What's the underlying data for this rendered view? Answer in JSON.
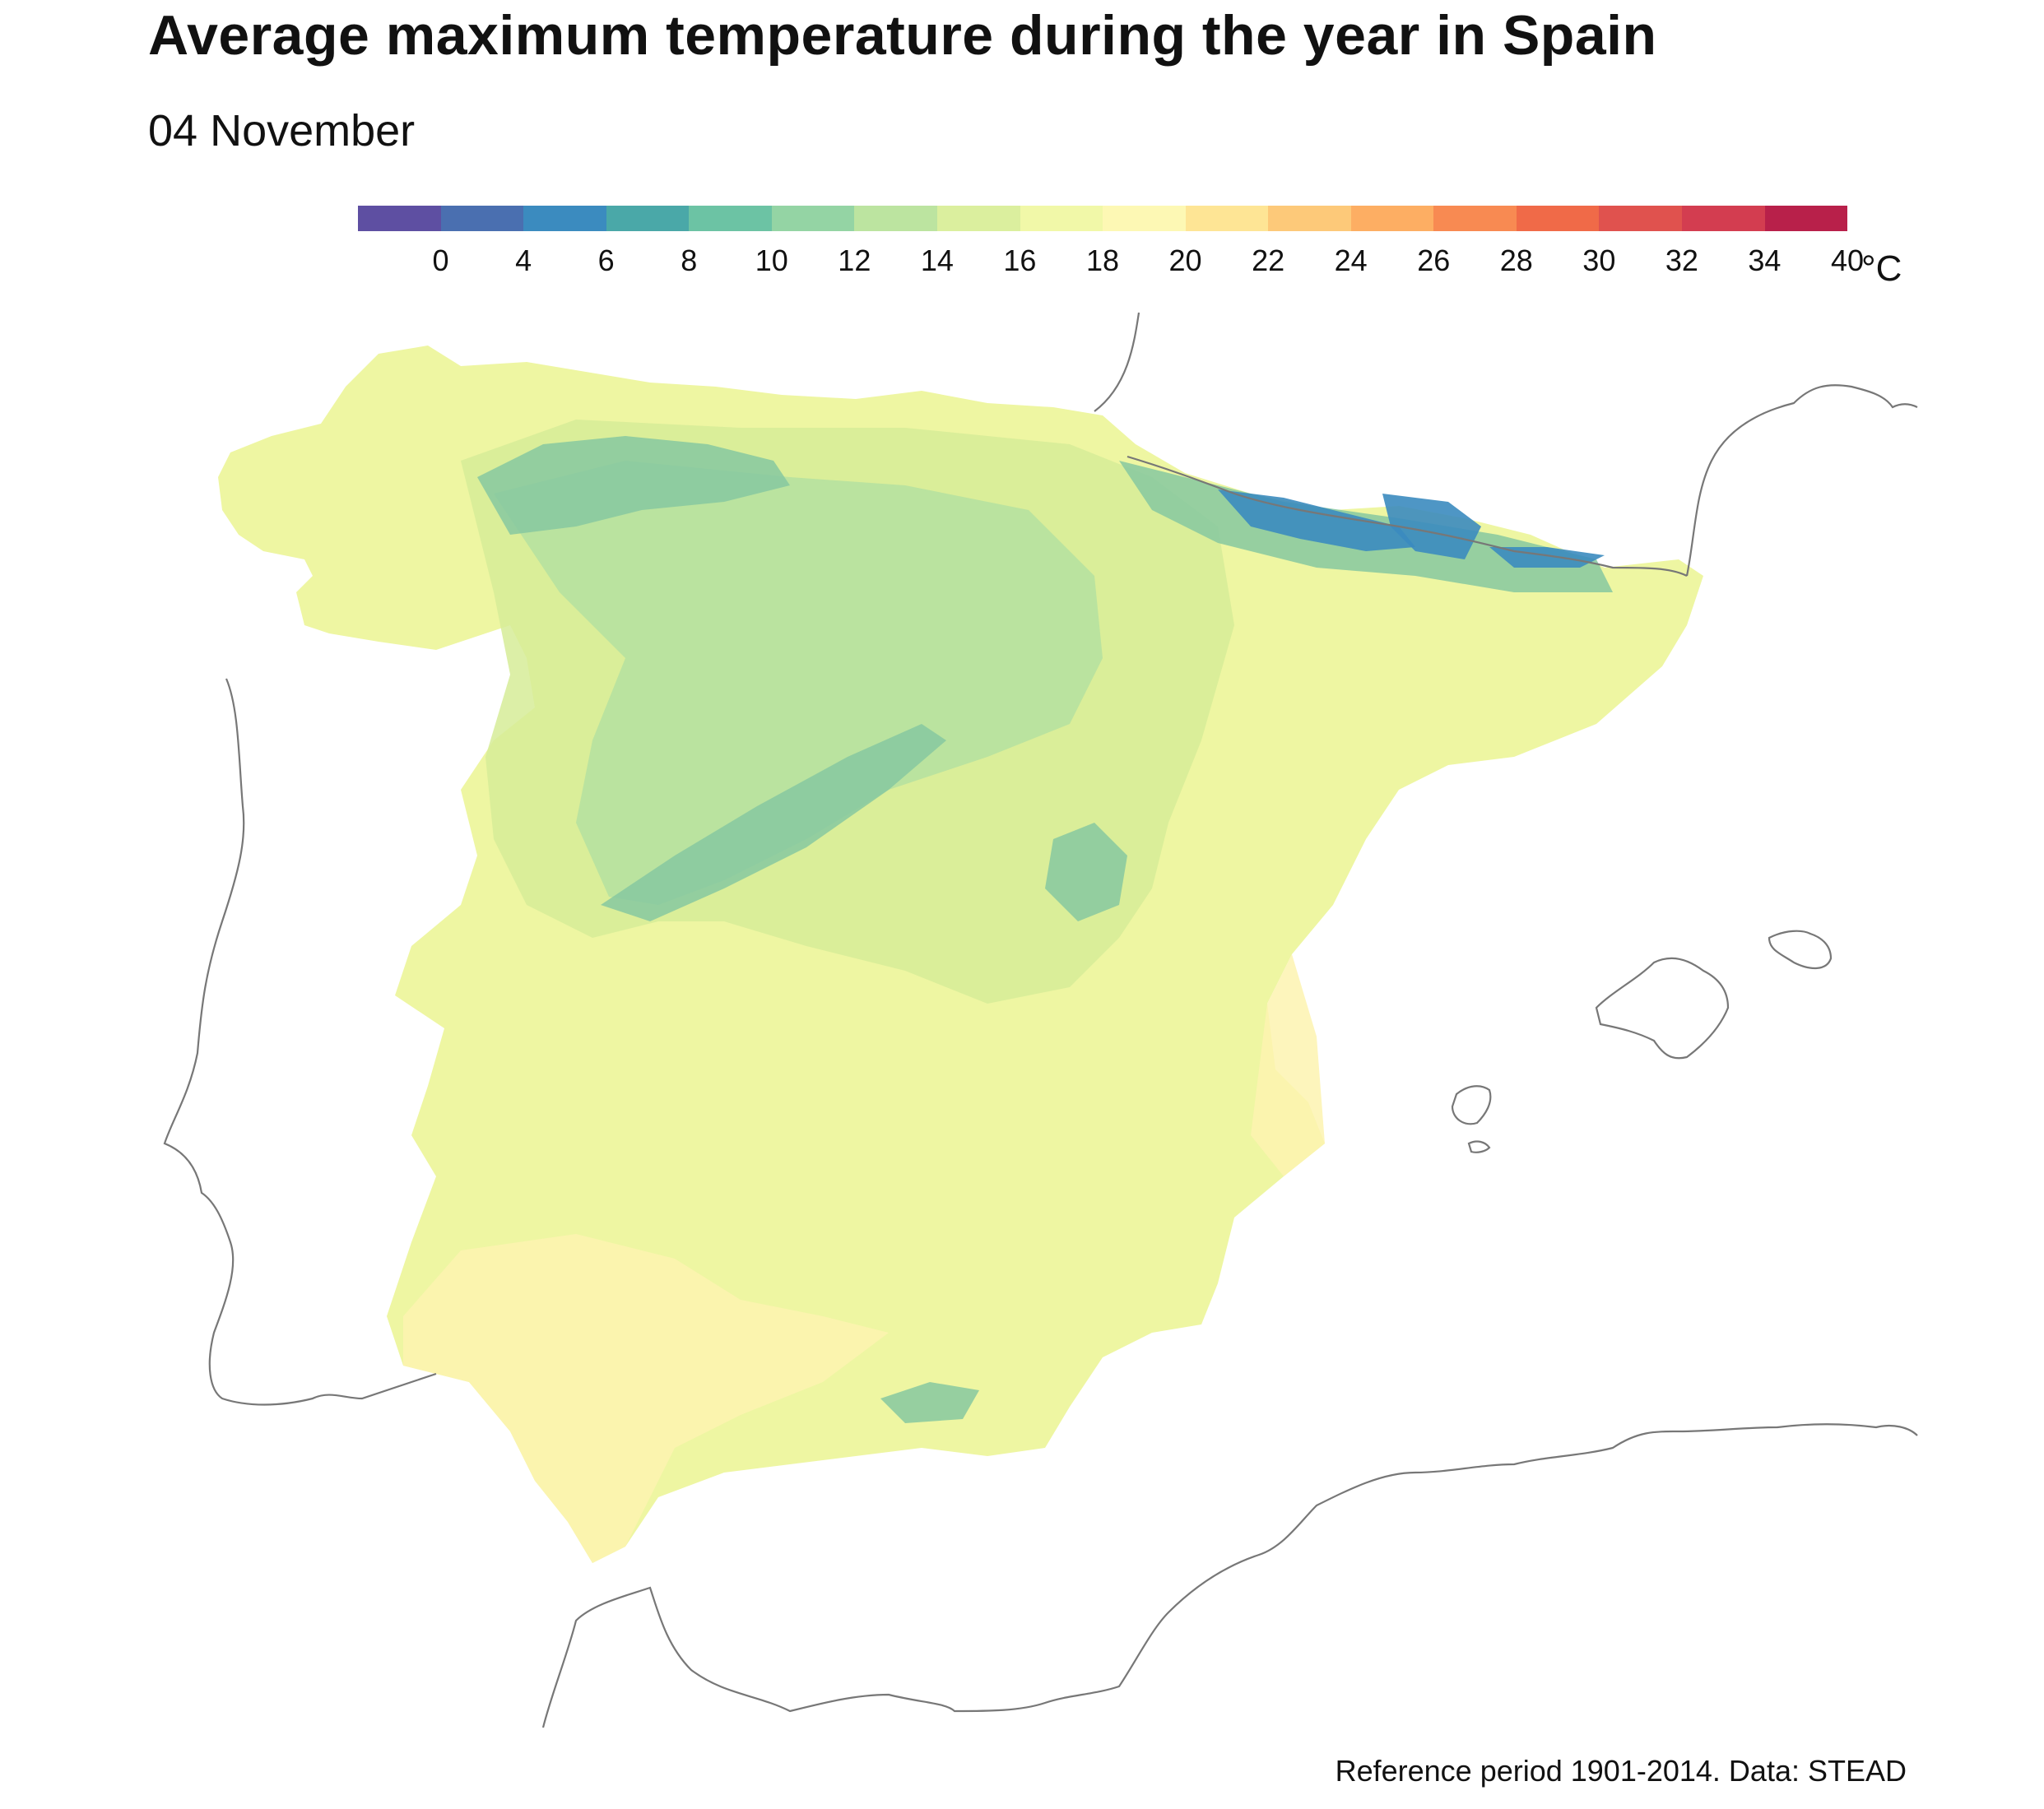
{
  "title": "Average maximum temperature during the year in Spain",
  "subtitle": "04 November",
  "legend": {
    "colors": [
      "#5e4fa2",
      "#4a6fb0",
      "#3b8bbf",
      "#4aa8a8",
      "#6cc3a4",
      "#94d4a4",
      "#bce4a0",
      "#dbef9e",
      "#f1f8a8",
      "#fdf8b4",
      "#fee595",
      "#fdc979",
      "#fdae63",
      "#f88a52",
      "#f06a48",
      "#e0524e",
      "#d33d50",
      "#b8204a"
    ],
    "ticks": [
      "0",
      "4",
      "6",
      "8",
      "10",
      "12",
      "14",
      "16",
      "18",
      "20",
      "22",
      "24",
      "26",
      "28",
      "30",
      "32",
      "34",
      "40"
    ],
    "unit": "°C"
  },
  "map": {
    "coast_color": "#777777",
    "fill_palette": {
      "warm": "#fdf3b0",
      "mild": "#eef6a2",
      "cool": "#d6ec98",
      "cold": "#b4e0a0",
      "colder": "#86c8a0",
      "coldest": "#3b8bbf"
    }
  },
  "caption": "Reference period 1901-2014. Data: STEAD"
}
